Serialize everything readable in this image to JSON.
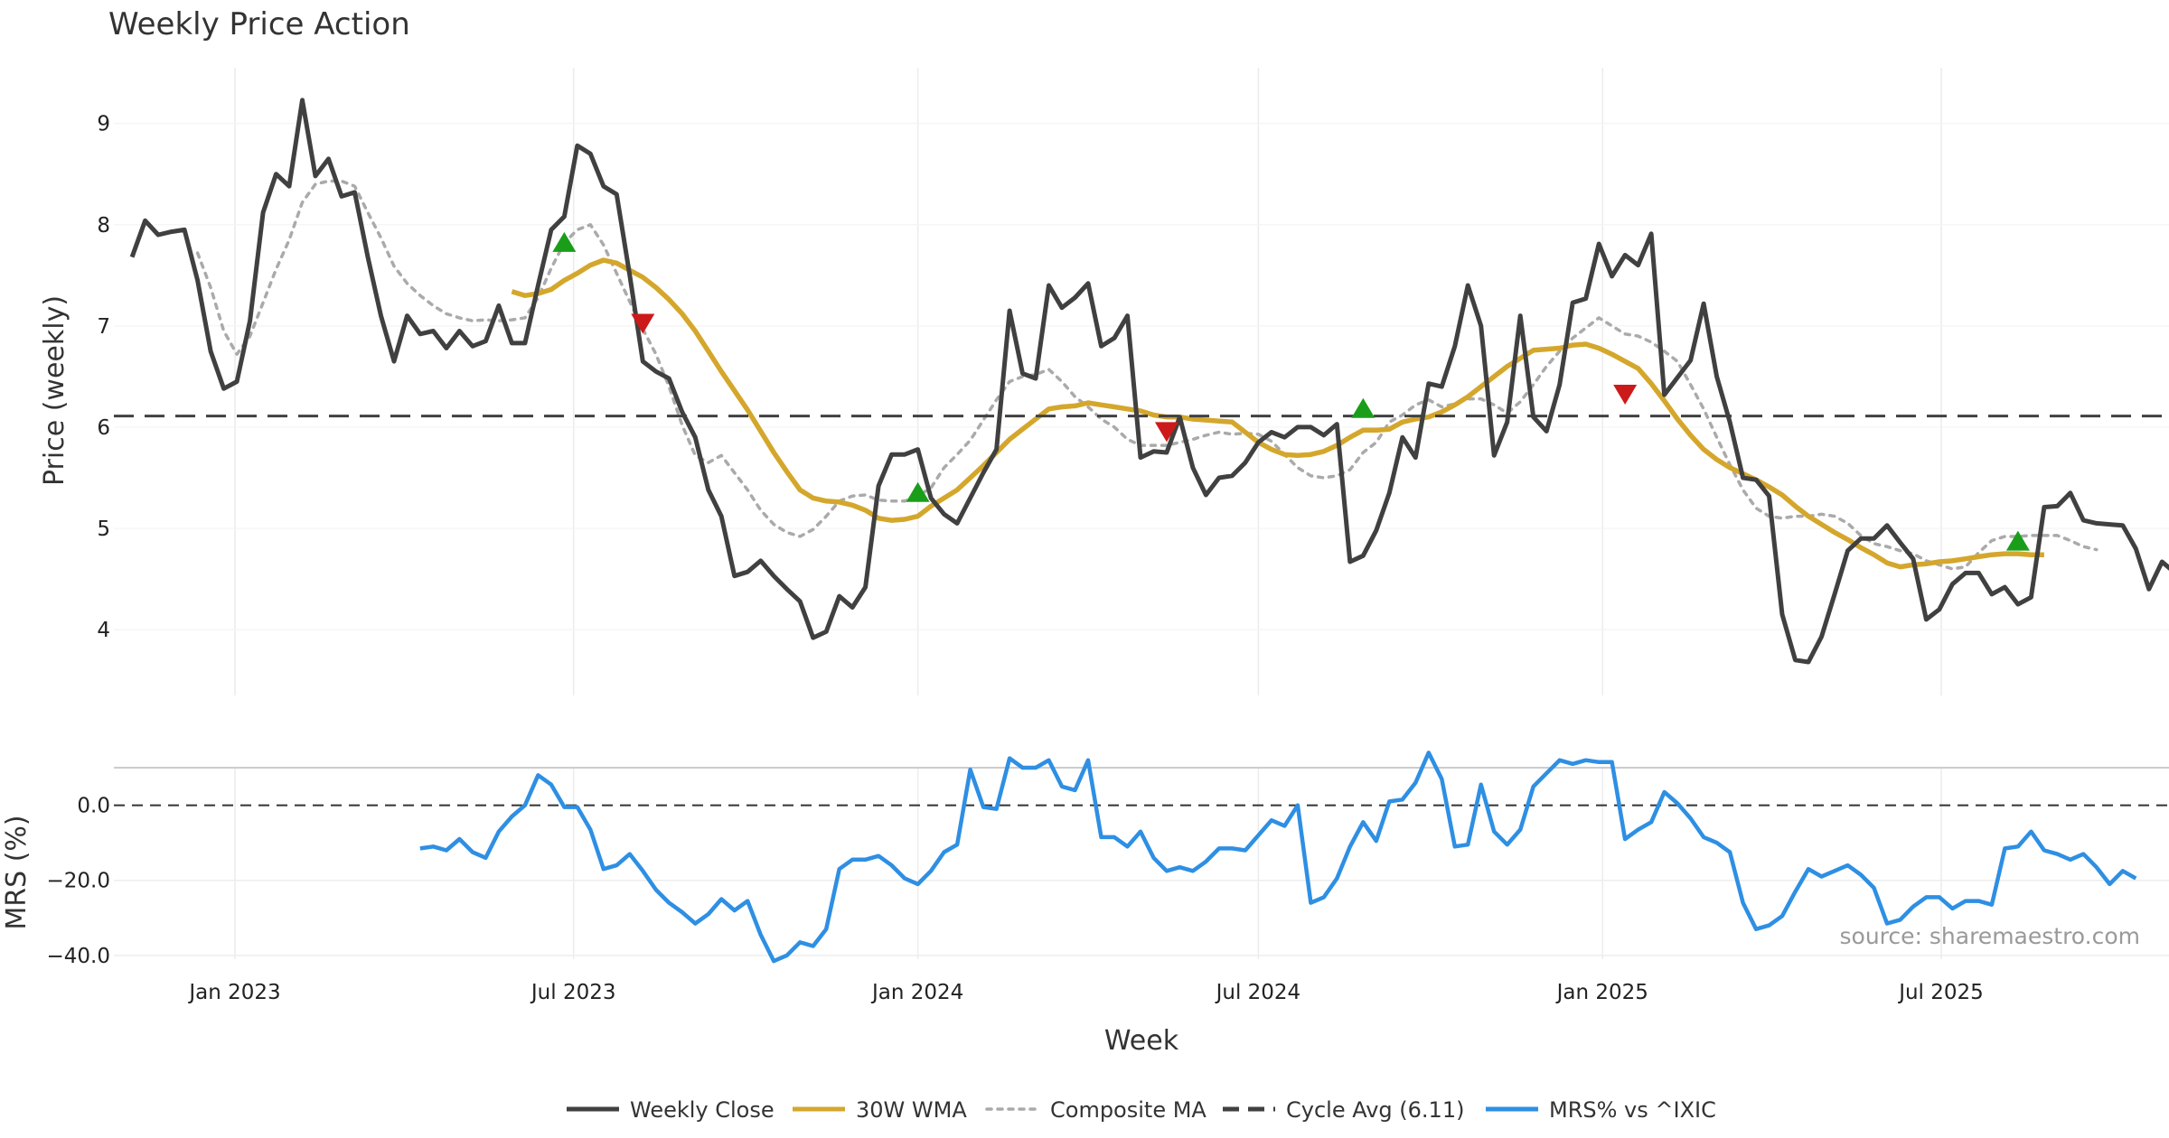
{
  "title": "Weekly Price Action",
  "source": "source: sharemaestro.com",
  "colors": {
    "close": "#404040",
    "wma": "#d4a72c",
    "composite": "#aaaaaa",
    "cycle": "#404040",
    "mrs": "#2e8fe3",
    "buy": "#1a9e1a",
    "sell": "#cc1a1a"
  },
  "chart_data": [
    {
      "type": "line",
      "panel": "price",
      "ylabel": "Price (weekly)",
      "xlabel": "",
      "ylim": [
        3.35,
        9.55
      ],
      "yticks": [
        4,
        5,
        6,
        7,
        8,
        9
      ],
      "x_start": "2022-11-07",
      "x_step_days": 7,
      "grid": true,
      "series": [
        {
          "name": "Weekly Close",
          "style": "solid",
          "start_index": 0,
          "values": [
            7.68,
            8.04,
            7.9,
            7.93,
            7.95,
            7.45,
            6.75,
            6.38,
            6.45,
            7.05,
            8.12,
            8.5,
            8.38,
            9.23,
            8.48,
            8.65,
            8.28,
            8.32,
            7.68,
            7.1,
            6.65,
            7.1,
            6.92,
            6.95,
            6.78,
            6.95,
            6.8,
            6.85,
            7.2,
            6.83,
            6.83,
            7.4,
            7.95,
            8.08,
            8.78,
            8.7,
            8.38,
            8.3,
            7.5,
            6.65,
            6.55,
            6.48,
            6.15,
            5.9,
            5.38,
            5.12,
            4.53,
            4.57,
            4.68,
            4.53,
            4.4,
            4.28,
            3.92,
            3.98,
            4.33,
            4.22,
            4.42,
            5.42,
            5.73,
            5.73,
            5.78,
            5.3,
            5.14,
            5.05,
            5.3,
            5.55,
            5.78,
            7.15,
            6.53,
            6.48,
            7.4,
            7.18,
            7.28,
            7.42,
            6.8,
            6.88,
            7.1,
            5.7,
            5.76,
            5.75,
            6.1,
            5.6,
            5.33,
            5.5,
            5.52,
            5.65,
            5.85,
            5.95,
            5.9,
            6.0,
            6.0,
            5.92,
            6.03,
            4.67,
            4.73,
            4.98,
            5.35,
            5.9,
            5.7,
            6.43,
            6.4,
            6.8,
            7.4,
            7.0,
            5.72,
            6.05,
            7.1,
            6.1,
            5.96,
            6.42,
            7.23,
            7.27,
            7.81,
            7.49,
            7.7,
            7.6,
            7.91,
            6.32,
            6.49,
            6.66,
            7.22,
            6.5,
            6.05,
            5.5,
            5.48,
            5.32,
            4.15,
            3.7,
            3.68,
            3.93,
            4.35,
            4.78,
            4.9,
            4.9,
            5.03,
            4.86,
            4.7,
            4.1,
            4.2,
            4.45,
            4.56,
            4.56,
            4.35,
            4.42,
            4.25,
            4.32,
            5.21,
            5.22,
            5.35,
            5.08,
            5.05,
            5.04,
            5.03,
            4.8,
            4.4,
            4.67,
            4.56
          ]
        },
        {
          "name": "30W WMA",
          "style": "solid",
          "start_index": 29,
          "values": [
            7.34,
            7.3,
            7.32,
            7.36,
            7.45,
            7.52,
            7.6,
            7.65,
            7.62,
            7.55,
            7.48,
            7.38,
            7.26,
            7.12,
            6.95,
            6.75,
            6.55,
            6.36,
            6.17,
            5.96,
            5.75,
            5.56,
            5.38,
            5.3,
            5.27,
            5.26,
            5.23,
            5.18,
            5.1,
            5.08,
            5.09,
            5.12,
            5.22,
            5.3,
            5.38,
            5.5,
            5.62,
            5.75,
            5.88,
            5.98,
            6.08,
            6.18,
            6.2,
            6.21,
            6.24,
            6.22,
            6.2,
            6.18,
            6.16,
            6.12,
            6.1,
            6.1,
            6.08,
            6.07,
            6.06,
            6.05,
            5.95,
            5.85,
            5.78,
            5.73,
            5.72,
            5.73,
            5.76,
            5.82,
            5.9,
            5.97,
            5.97,
            5.98,
            6.05,
            6.08,
            6.1,
            6.15,
            6.22,
            6.3,
            6.4,
            6.5,
            6.6,
            6.68,
            6.76,
            6.77,
            6.78,
            6.81,
            6.82,
            6.78,
            6.72,
            6.65,
            6.58,
            6.43,
            6.26,
            6.08,
            5.92,
            5.78,
            5.68,
            5.6,
            5.54,
            5.48,
            5.41,
            5.33,
            5.22,
            5.12,
            5.04,
            4.96,
            4.89,
            4.81,
            4.74,
            4.66,
            4.62,
            4.64,
            4.65,
            4.67,
            4.68,
            4.7,
            4.72,
            4.74,
            4.75,
            4.75,
            4.74,
            4.74
          ]
        },
        {
          "name": "Composite MA",
          "style": "dotted",
          "start_index": 5,
          "values": [
            7.72,
            7.38,
            6.95,
            6.72,
            6.9,
            7.23,
            7.56,
            7.85,
            8.22,
            8.4,
            8.43,
            8.43,
            8.38,
            8.12,
            7.87,
            7.59,
            7.42,
            7.3,
            7.2,
            7.12,
            7.08,
            7.05,
            7.06,
            7.05,
            7.06,
            7.08,
            7.28,
            7.57,
            7.82,
            7.95,
            8.0,
            7.8,
            7.52,
            7.24,
            6.97,
            6.72,
            6.4,
            6.02,
            5.72,
            5.65,
            5.72,
            5.55,
            5.38,
            5.18,
            5.04,
            4.96,
            4.92,
            4.99,
            5.12,
            5.27,
            5.32,
            5.33,
            5.28,
            5.27,
            5.27,
            5.32,
            5.4,
            5.6,
            5.73,
            5.87,
            6.07,
            6.27,
            6.45,
            6.5,
            6.52,
            6.57,
            6.45,
            6.3,
            6.2,
            6.08,
            6.0,
            5.88,
            5.82,
            5.82,
            5.82,
            5.85,
            5.88,
            5.92,
            5.95,
            5.93,
            5.94,
            5.93,
            5.86,
            5.73,
            5.6,
            5.52,
            5.5,
            5.52,
            5.58,
            5.75,
            5.85,
            6.05,
            6.12,
            6.22,
            6.27,
            6.2,
            6.23,
            6.28,
            6.28,
            6.22,
            6.14,
            6.25,
            6.42,
            6.6,
            6.75,
            6.88,
            6.98,
            7.08,
            7.0,
            6.92,
            6.9,
            6.84,
            6.75,
            6.65,
            6.42,
            6.18,
            5.9,
            5.63,
            5.38,
            5.2,
            5.12,
            5.1,
            5.12,
            5.12,
            5.14,
            5.12,
            5.05,
            4.93,
            4.85,
            4.82,
            4.78,
            4.75,
            4.68,
            4.64,
            4.6,
            4.62,
            4.76,
            4.88,
            4.92,
            4.92,
            4.93,
            4.93,
            4.93,
            4.88,
            4.82,
            4.79
          ]
        },
        {
          "name": "Cycle Avg (6.11)",
          "style": "dashed",
          "constant": 6.11
        }
      ],
      "markers": {
        "buy": [
          [
            33,
            7.82
          ],
          [
            60,
            5.35
          ],
          [
            94,
            6.18
          ],
          [
            144,
            4.87
          ]
        ],
        "sell": [
          [
            39,
            7.03
          ],
          [
            79,
            5.96
          ],
          [
            114,
            6.33
          ]
        ]
      }
    },
    {
      "type": "line",
      "panel": "mrs",
      "ylabel": "MRS (%)",
      "xlabel": "Week",
      "ylim": [
        -41,
        10
      ],
      "yticks": [
        0,
        -20,
        -40
      ],
      "ytick_labels": [
        "0.0",
        "−20.0",
        "−40.0"
      ],
      "grid": true,
      "series": [
        {
          "name": "MRS% vs ^IXIC",
          "style": "solid",
          "start_index": 22,
          "values": [
            -11.5,
            -11,
            -12,
            -9,
            -12.5,
            -14,
            -7,
            -3,
            0,
            8,
            5.5,
            -0.5,
            -0.5,
            -6.5,
            -17,
            -16,
            -13,
            -17.5,
            -22.5,
            -26,
            -28.5,
            -31.5,
            -29,
            -25,
            -28,
            -25.5,
            -34.5,
            -41.5,
            -40,
            -36.5,
            -37.5,
            -33,
            -17,
            -14.5,
            -14.5,
            -13.5,
            -16,
            -19.5,
            -21,
            -17.5,
            -12.5,
            -10.5,
            9.5,
            -0.5,
            -1,
            12.5,
            10,
            10,
            12,
            5,
            4,
            12,
            -8.5,
            -8.5,
            -11,
            -7,
            -14,
            -17.5,
            -16.5,
            -17.5,
            -15,
            -11.5,
            -11.5,
            -12,
            -8,
            -4,
            -5.5,
            0,
            -26,
            -24.5,
            -19.5,
            -11,
            -4.5,
            -9.5,
            1,
            1.5,
            6,
            14,
            7,
            -11,
            -10.5,
            5.5,
            -7,
            -10.5,
            -6.5,
            5,
            8.5,
            12,
            11,
            12,
            11.5,
            11.5,
            -9,
            -6.5,
            -4.5,
            3.5,
            0.5,
            -3.5,
            -8.5,
            -10,
            -12.5,
            -26,
            -33,
            -32,
            -29.5,
            -23,
            -17,
            -19,
            -17.5,
            -16,
            -18.5,
            -22,
            -31.5,
            -30.5,
            -27,
            -24.5,
            -24.5,
            -27.5,
            -25.5,
            -25.5,
            -26.5,
            -11.5,
            -11,
            -7,
            -12,
            -13,
            -14.5,
            -13,
            -16.5,
            -21,
            -17.5,
            -19.5
          ]
        }
      ]
    }
  ],
  "xaxis": {
    "label": "Week",
    "ticks": [
      {
        "label": "Jan 2023",
        "date": "2023-01-01"
      },
      {
        "label": "Jul 2023",
        "date": "2023-07-01"
      },
      {
        "label": "Jan 2024",
        "date": "2024-01-01"
      },
      {
        "label": "Jul 2024",
        "date": "2024-07-01"
      },
      {
        "label": "Jan 2025",
        "date": "2025-01-01"
      },
      {
        "label": "Jul 2025",
        "date": "2025-07-01"
      }
    ]
  },
  "legend": {
    "placement": "bottom-center",
    "items": [
      {
        "label": "Weekly Close",
        "style": "solid",
        "color": "#404040"
      },
      {
        "label": "30W WMA",
        "style": "solid",
        "color": "#d4a72c"
      },
      {
        "label": "Composite MA",
        "style": "dotted",
        "color": "#aaaaaa"
      },
      {
        "label": "Cycle Avg (6.11)",
        "style": "dashed",
        "color": "#404040"
      },
      {
        "label": "MRS% vs ^IXIC",
        "style": "solid",
        "color": "#2e8fe3"
      }
    ]
  }
}
